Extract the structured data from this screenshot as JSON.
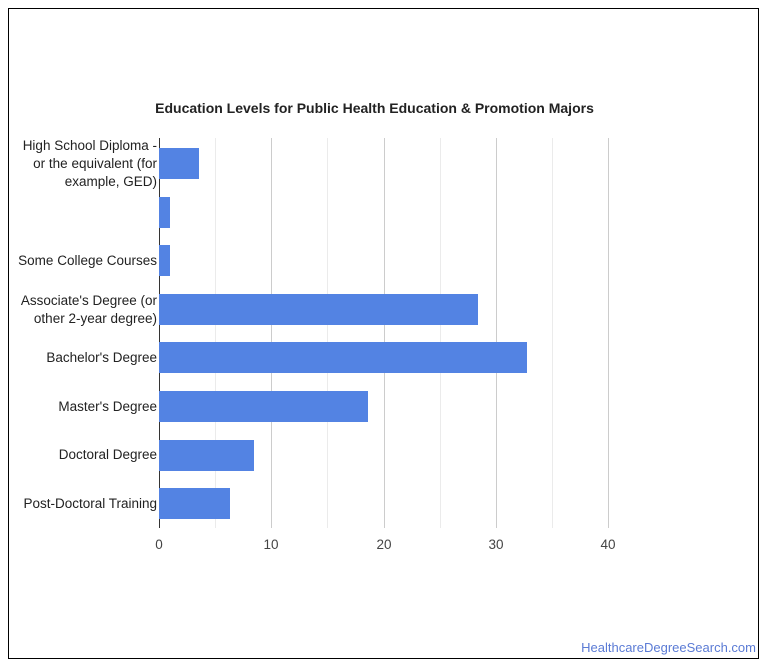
{
  "chart_data": {
    "type": "bar",
    "orientation": "horizontal",
    "title": "Education Levels for Public Health Education & Promotion Majors",
    "categories": [
      "High School Diploma - or the equivalent (for example, GED)",
      "",
      "Some College Courses",
      "Associate's Degree (or other 2-year degree)",
      "Bachelor's Degree",
      "Master's Degree",
      "Doctoral Degree",
      "Post-Doctoral Training"
    ],
    "values": [
      3.6,
      1.0,
      1.0,
      28.4,
      32.8,
      18.6,
      8.5,
      6.3
    ],
    "xlabel": "",
    "ylabel": "",
    "xlim": [
      0,
      40
    ],
    "xticks": [
      "0",
      "10",
      "20",
      "30",
      "40"
    ],
    "grid": true,
    "bar_color": "#5383e3",
    "legend": null
  },
  "labels": {
    "cat0_lines": [
      "High School Diploma -",
      "or the equivalent (for",
      "example, GED)"
    ],
    "cat2": "Some College Courses",
    "cat3_lines": [
      "Associate's Degree (or",
      "other 2-year degree)"
    ],
    "cat4": "Bachelor's Degree",
    "cat5": "Master's Degree",
    "cat6": "Doctoral Degree",
    "cat7": "Post-Doctoral Training"
  },
  "footer": {
    "source": "HealthcareDegreeSearch.com"
  }
}
